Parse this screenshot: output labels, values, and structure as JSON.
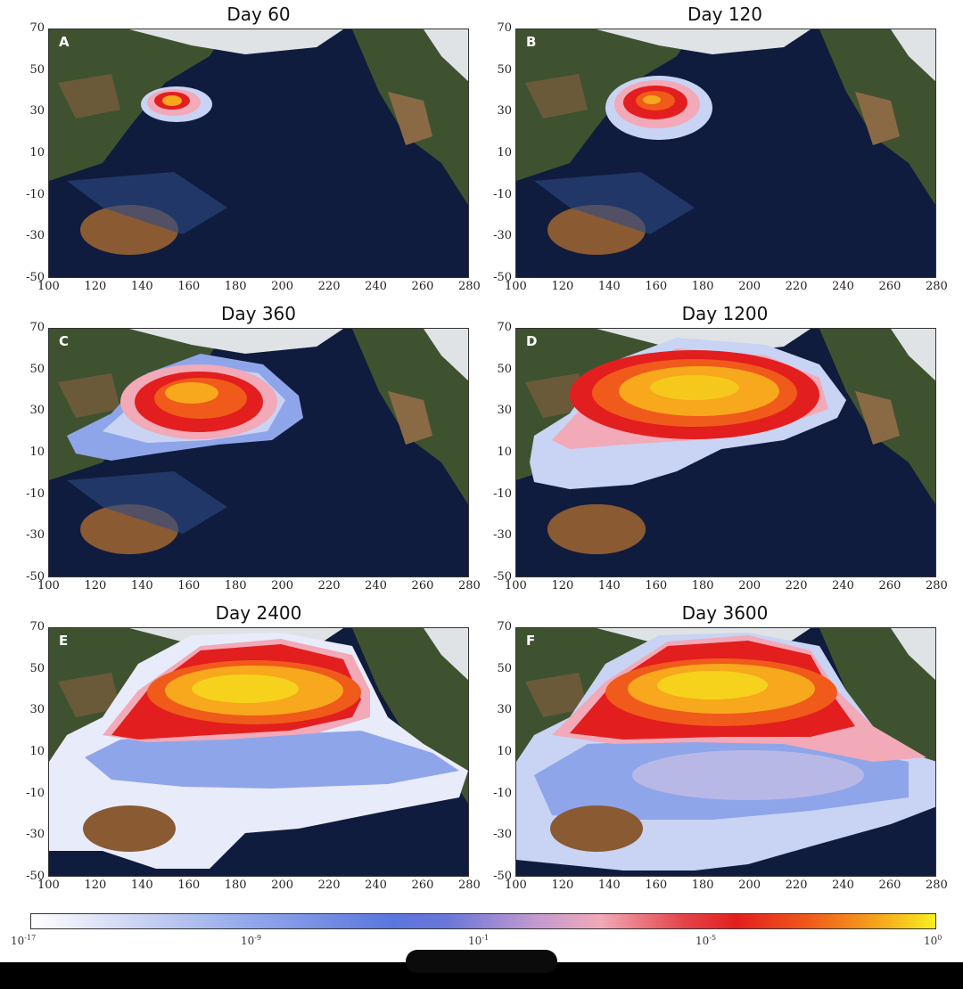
{
  "panels": [
    {
      "letter": "A",
      "title": "Day 60"
    },
    {
      "letter": "B",
      "title": "Day 120"
    },
    {
      "letter": "C",
      "title": "Day 360"
    },
    {
      "letter": "D",
      "title": "Day 1200"
    },
    {
      "letter": "E",
      "title": "Day 2400"
    },
    {
      "letter": "F",
      "title": "Day 3600"
    }
  ],
  "axes": {
    "x_ticks": [
      "100",
      "120",
      "140",
      "160",
      "180",
      "200",
      "220",
      "240",
      "260",
      "280"
    ],
    "y_ticks": [
      "70",
      "50",
      "30",
      "10",
      "-10",
      "-30",
      "-50"
    ]
  },
  "colorbar": {
    "labels": [
      "10",
      "10",
      "10",
      "10",
      "10"
    ],
    "exponents": [
      "-17",
      "-9",
      "-1",
      "-5",
      "0"
    ]
  },
  "colors": {
    "ocean": "#101c3d",
    "land": "#3f5230",
    "desert": "#8a5a33",
    "snow": "#dfe3e6",
    "plume_low": "#c9d3f3",
    "plume_mid": "#5a76de",
    "plume_pink": "#f2a9b8",
    "plume_red": "#e31e1e",
    "plume_orange": "#f7a81c",
    "plume_yellow": "#f7f11f"
  }
}
